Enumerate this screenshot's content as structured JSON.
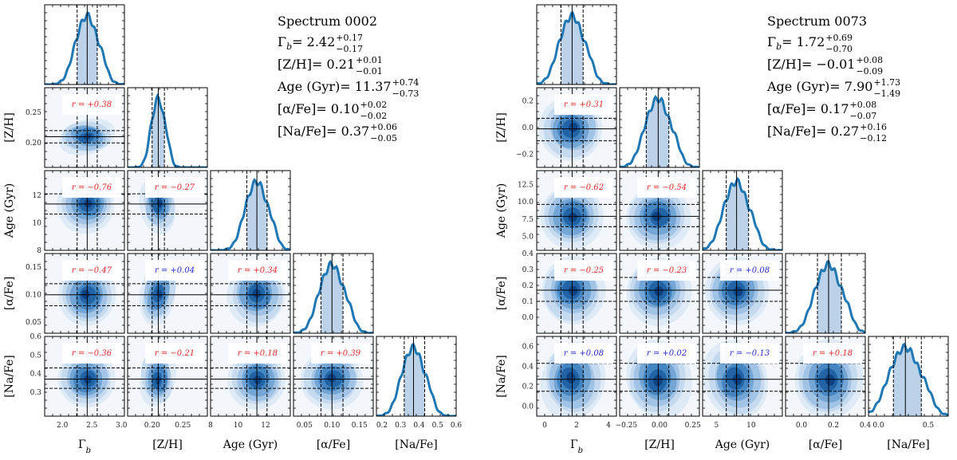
{
  "colors": {
    "kde": "#1f77b4",
    "positive_r": "#e8262b",
    "negative_r": "#e8262b",
    "blue_r": "#2a2ad8"
  },
  "chart_data": [
    {
      "type": "corner",
      "title": "Spectrum 0002",
      "params": [
        "Γb",
        "[Z/H]",
        "Age (Gyr)",
        "[α/Fe]",
        "[Na/Fe]"
      ],
      "axis_labels": [
        "Γ_b",
        "[Z/H]",
        "Age (Gyr)",
        "[α/Fe]",
        "[Na/Fe]"
      ],
      "ranges": [
        [
          1.7,
          3.05
        ],
        [
          0.16,
          0.29
        ],
        [
          8,
          13.8
        ],
        [
          0.03,
          0.175
        ],
        [
          0.17,
          0.6
        ]
      ],
      "ticks": [
        {
          "values": [
            2.0,
            2.5,
            3.0
          ],
          "labels": [
            "2.0",
            "2.5",
            "3.0"
          ]
        },
        {
          "values": [
            0.2,
            0.25
          ],
          "labels": [
            "0.20",
            "0.25"
          ]
        },
        {
          "values": [
            8,
            10,
            12
          ],
          "labels": [
            "8",
            "10",
            "12"
          ]
        },
        {
          "values": [
            0.05,
            0.1,
            0.15
          ],
          "labels": [
            "0.05",
            "0.10",
            "0.15"
          ]
        },
        {
          "values": [
            0.2,
            0.3,
            0.4,
            0.5,
            0.6
          ],
          "labels": [
            "0.2",
            "0.3",
            "0.4",
            "0.5",
            "0.6"
          ]
        }
      ],
      "ylabel_ticks": [
        null,
        {
          "values": [
            0.2,
            0.25
          ],
          "labels": [
            "0.20",
            "0.25"
          ]
        },
        {
          "values": [
            8,
            10,
            12
          ],
          "labels": [
            "8",
            "10",
            "12"
          ]
        },
        {
          "values": [
            0.05,
            0.1,
            0.15
          ],
          "labels": [
            "0.05",
            "0.10",
            "0.15"
          ]
        },
        {
          "values": [
            0.3,
            0.4,
            0.5,
            0.6
          ],
          "labels": [
            "0.3",
            "0.4",
            "0.5",
            "0.6"
          ]
        }
      ],
      "median": [
        2.42,
        0.21,
        11.37,
        0.1,
        0.37
      ],
      "err_plus": [
        0.17,
        0.01,
        0.74,
        0.02,
        0.06
      ],
      "err_minus": [
        0.17,
        0.01,
        0.73,
        0.02,
        0.05
      ],
      "correlations": [
        {
          "row": 1,
          "col": 0,
          "r": "r = +0.38",
          "color": "red"
        },
        {
          "row": 2,
          "col": 0,
          "r": "r = −0.76",
          "color": "red"
        },
        {
          "row": 2,
          "col": 1,
          "r": "r = −0.27",
          "color": "red"
        },
        {
          "row": 3,
          "col": 0,
          "r": "r = −0.47",
          "color": "red"
        },
        {
          "row": 3,
          "col": 1,
          "r": "r = +0.04",
          "color": "blue"
        },
        {
          "row": 3,
          "col": 2,
          "r": "r = +0.34",
          "color": "red"
        },
        {
          "row": 4,
          "col": 0,
          "r": "r = −0.36",
          "color": "red"
        },
        {
          "row": 4,
          "col": 1,
          "r": "r = −0.21",
          "color": "red"
        },
        {
          "row": 4,
          "col": 2,
          "r": "r = +0.18",
          "color": "red"
        },
        {
          "row": 4,
          "col": 3,
          "r": "r = +0.39",
          "color": "red"
        }
      ],
      "summary": [
        {
          "label": "Γb",
          "value": "2.42",
          "plus": "+0.17",
          "minus": "−0.17"
        },
        {
          "label": "[Z/H]",
          "value": "0.21",
          "plus": "+0.01",
          "minus": "−0.01"
        },
        {
          "label": "Age (Gyr)",
          "value": "11.37",
          "plus": "+0.74",
          "minus": "−0.73"
        },
        {
          "label": "[α/Fe]",
          "value": "0.10",
          "plus": "+0.02",
          "minus": "−0.02"
        },
        {
          "label": "[Na/Fe]",
          "value": "0.37",
          "plus": "+0.06",
          "minus": "−0.05"
        }
      ]
    },
    {
      "type": "corner",
      "title": "Spectrum 0073",
      "params": [
        "Γb",
        "[Z/H]",
        "Age (Gyr)",
        "[α/Fe]",
        "[Na/Fe]"
      ],
      "axis_labels": [
        "Γ_b",
        "[Z/H]",
        "Age (Gyr)",
        "[α/Fe]",
        "[Na/Fe]"
      ],
      "ranges": [
        [
          -0.5,
          4.5
        ],
        [
          -0.3,
          0.3
        ],
        [
          3.0,
          14.5
        ],
        [
          -0.1,
          0.4
        ],
        [
          -0.1,
          0.7
        ]
      ],
      "ticks": [
        {
          "values": [
            0,
            2,
            4
          ],
          "labels": [
            "0",
            "2",
            "4"
          ]
        },
        {
          "values": [
            -0.25,
            0.0,
            0.25
          ],
          "labels": [
            "−0.25",
            "0.00",
            "0.25"
          ]
        },
        {
          "values": [
            5,
            10
          ],
          "labels": [
            "5",
            "10"
          ]
        },
        {
          "values": [
            0.0,
            0.2,
            0.4
          ],
          "labels": [
            "0.0",
            "0.2",
            "0.4"
          ]
        },
        {
          "values": [
            0.0,
            0.5
          ],
          "labels": [
            "0.0",
            "0.5"
          ]
        }
      ],
      "ylabel_ticks": [
        null,
        {
          "values": [
            -0.2,
            0.0,
            0.2
          ],
          "labels": [
            "−0.2",
            "0.0",
            "0.2"
          ]
        },
        {
          "values": [
            5.0,
            7.5,
            10.0,
            12.5
          ],
          "labels": [
            "5.0",
            "7.5",
            "10.0",
            "12.5"
          ]
        },
        {
          "values": [
            0.0,
            0.1,
            0.2,
            0.3,
            0.4
          ],
          "labels": [
            "0.0",
            "0.1",
            "0.2",
            "0.3",
            "0.4"
          ]
        },
        {
          "values": [
            0.0,
            0.2,
            0.4,
            0.6
          ],
          "labels": [
            "0.0",
            "0.2",
            "0.4",
            "0.6"
          ]
        }
      ],
      "median": [
        1.72,
        -0.01,
        7.9,
        0.17,
        0.27
      ],
      "err_plus": [
        0.69,
        0.08,
        1.73,
        0.08,
        0.16
      ],
      "err_minus": [
        0.7,
        0.09,
        1.49,
        0.07,
        0.12
      ],
      "correlations": [
        {
          "row": 1,
          "col": 0,
          "r": "r = +0.31",
          "color": "red"
        },
        {
          "row": 2,
          "col": 0,
          "r": "r = −0.62",
          "color": "red"
        },
        {
          "row": 2,
          "col": 1,
          "r": "r = −0.54",
          "color": "red"
        },
        {
          "row": 3,
          "col": 0,
          "r": "r = −0.25",
          "color": "red"
        },
        {
          "row": 3,
          "col": 1,
          "r": "r = −0.23",
          "color": "red"
        },
        {
          "row": 3,
          "col": 2,
          "r": "r = +0.08",
          "color": "blue"
        },
        {
          "row": 4,
          "col": 0,
          "r": "r = +0.08",
          "color": "blue"
        },
        {
          "row": 4,
          "col": 1,
          "r": "r = +0.02",
          "color": "blue"
        },
        {
          "row": 4,
          "col": 2,
          "r": "r = −0.13",
          "color": "blue"
        },
        {
          "row": 4,
          "col": 3,
          "r": "r = +0.18",
          "color": "red"
        }
      ],
      "summary": [
        {
          "label": "Γb",
          "value": "1.72",
          "plus": "+0.69",
          "minus": "−0.70"
        },
        {
          "label": "[Z/H]",
          "value": "−0.01",
          "plus": "+0.08",
          "minus": "−0.09"
        },
        {
          "label": "Age (Gyr)",
          "value": "7.90",
          "plus": "+1.73",
          "minus": "−1.49"
        },
        {
          "label": "[α/Fe]",
          "value": "0.17",
          "plus": "+0.08",
          "minus": "−0.07"
        },
        {
          "label": "[Na/Fe]",
          "value": "0.27",
          "plus": "+0.16",
          "minus": "−0.12"
        }
      ]
    }
  ]
}
